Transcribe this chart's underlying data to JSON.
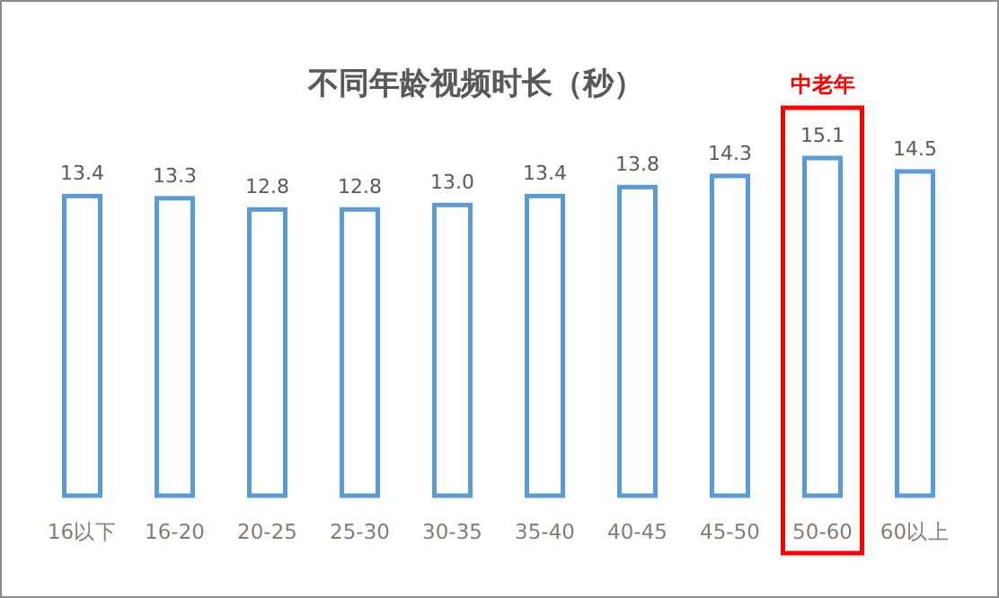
{
  "chart_data": {
    "type": "bar",
    "title": "不同年龄视频时长（秒）",
    "categories": [
      "16以下",
      "16-20",
      "20-25",
      "25-30",
      "30-35",
      "35-40",
      "40-45",
      "45-50",
      "50-60",
      "60以上"
    ],
    "values": [
      13.4,
      13.3,
      12.8,
      12.8,
      13.0,
      13.4,
      13.8,
      14.3,
      15.1,
      14.5
    ],
    "color": "#5b9bd5",
    "tick_labels": "x",
    "value_labels": [
      "13.4",
      "13.3",
      "12.8",
      "12.8",
      "13.0",
      "13.4",
      "13.8",
      "14.3",
      "15.1",
      "14.5"
    ],
    "annotations": [
      "中老年"
    ]
  }
}
